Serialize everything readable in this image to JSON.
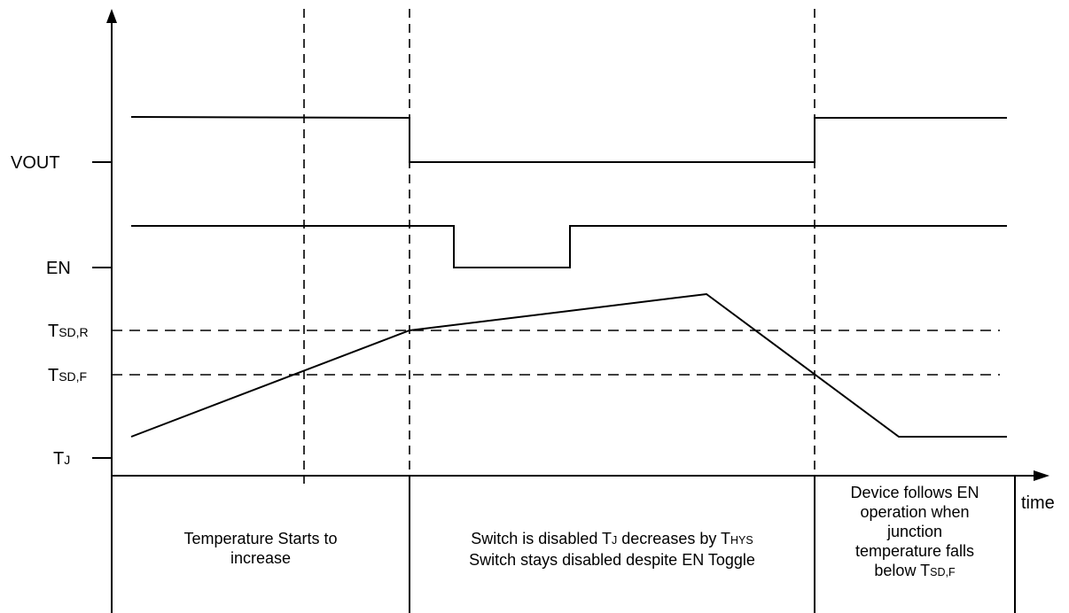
{
  "signals": {
    "vout": "VOUT",
    "en": "EN",
    "tsdr": {
      "main": "T",
      "sub": "SD,R"
    },
    "tsdf": {
      "main": "T",
      "sub": "SD,F"
    },
    "tj": {
      "main": "T",
      "sub": "J"
    }
  },
  "axis": {
    "time_label": "time"
  },
  "phases": {
    "phase1": {
      "line1": "Temperature Starts to",
      "line2": "increase"
    },
    "phase2": {
      "line1_a": "Switch is disabled T",
      "line1_sub1": "J",
      "line1_b": " decreases by T",
      "line1_sub2": "HYS",
      "line2": "Switch stays disabled despite EN Toggle"
    },
    "phase3": {
      "line1": "Device follows EN",
      "line2": "operation when",
      "line3": "junction",
      "line4": "temperature falls",
      "line5_a": "below T",
      "line5_sub": "SD,F"
    }
  }
}
